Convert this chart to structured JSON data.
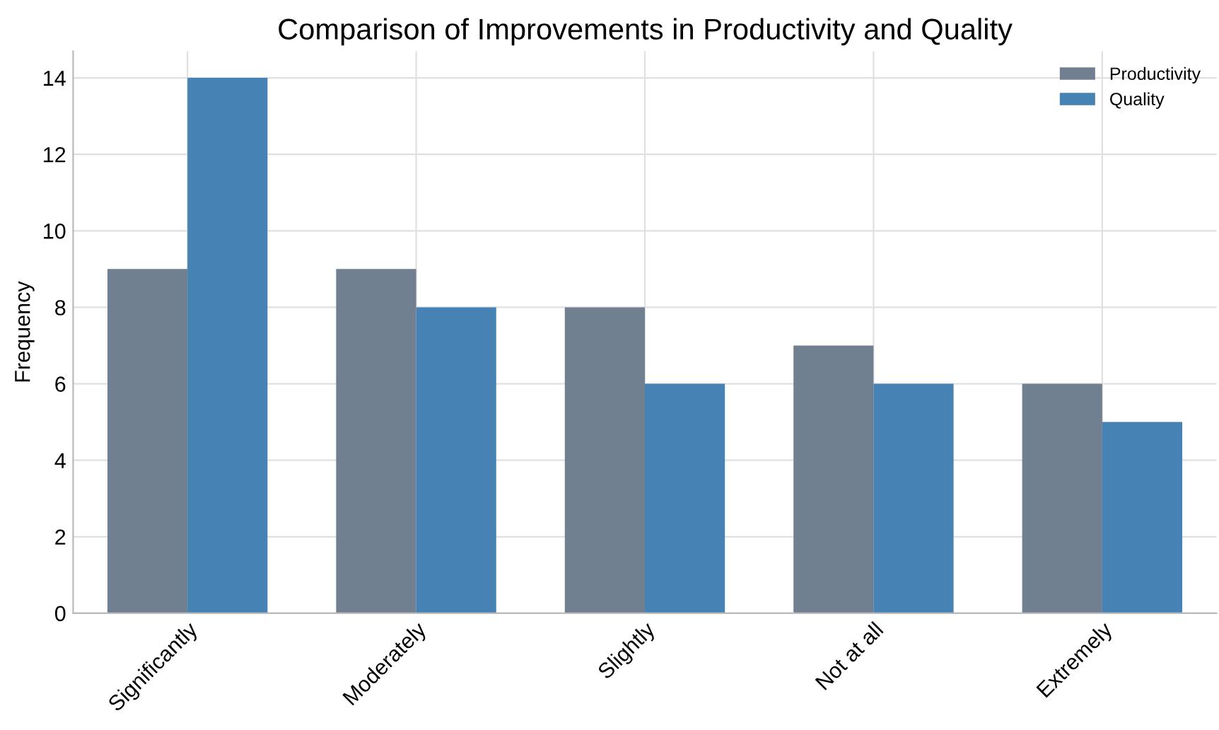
{
  "chart_data": {
    "type": "bar",
    "title": "Comparison of Improvements in Productivity and Quality",
    "ylabel": "Frequency",
    "categories": [
      "Significantly",
      "Moderately",
      "Slightly",
      "Not at all",
      "Extremely"
    ],
    "series": [
      {
        "name": "Productivity",
        "color": "#708090",
        "values": [
          9,
          9,
          8,
          7,
          6
        ]
      },
      {
        "name": "Quality",
        "color": "#4682b4",
        "values": [
          14,
          8,
          6,
          6,
          5
        ]
      }
    ],
    "ylim": [
      0,
      14.7
    ],
    "yticks": [
      0,
      2,
      4,
      6,
      8,
      10,
      12,
      14
    ],
    "grid": true,
    "legend": "top right"
  }
}
